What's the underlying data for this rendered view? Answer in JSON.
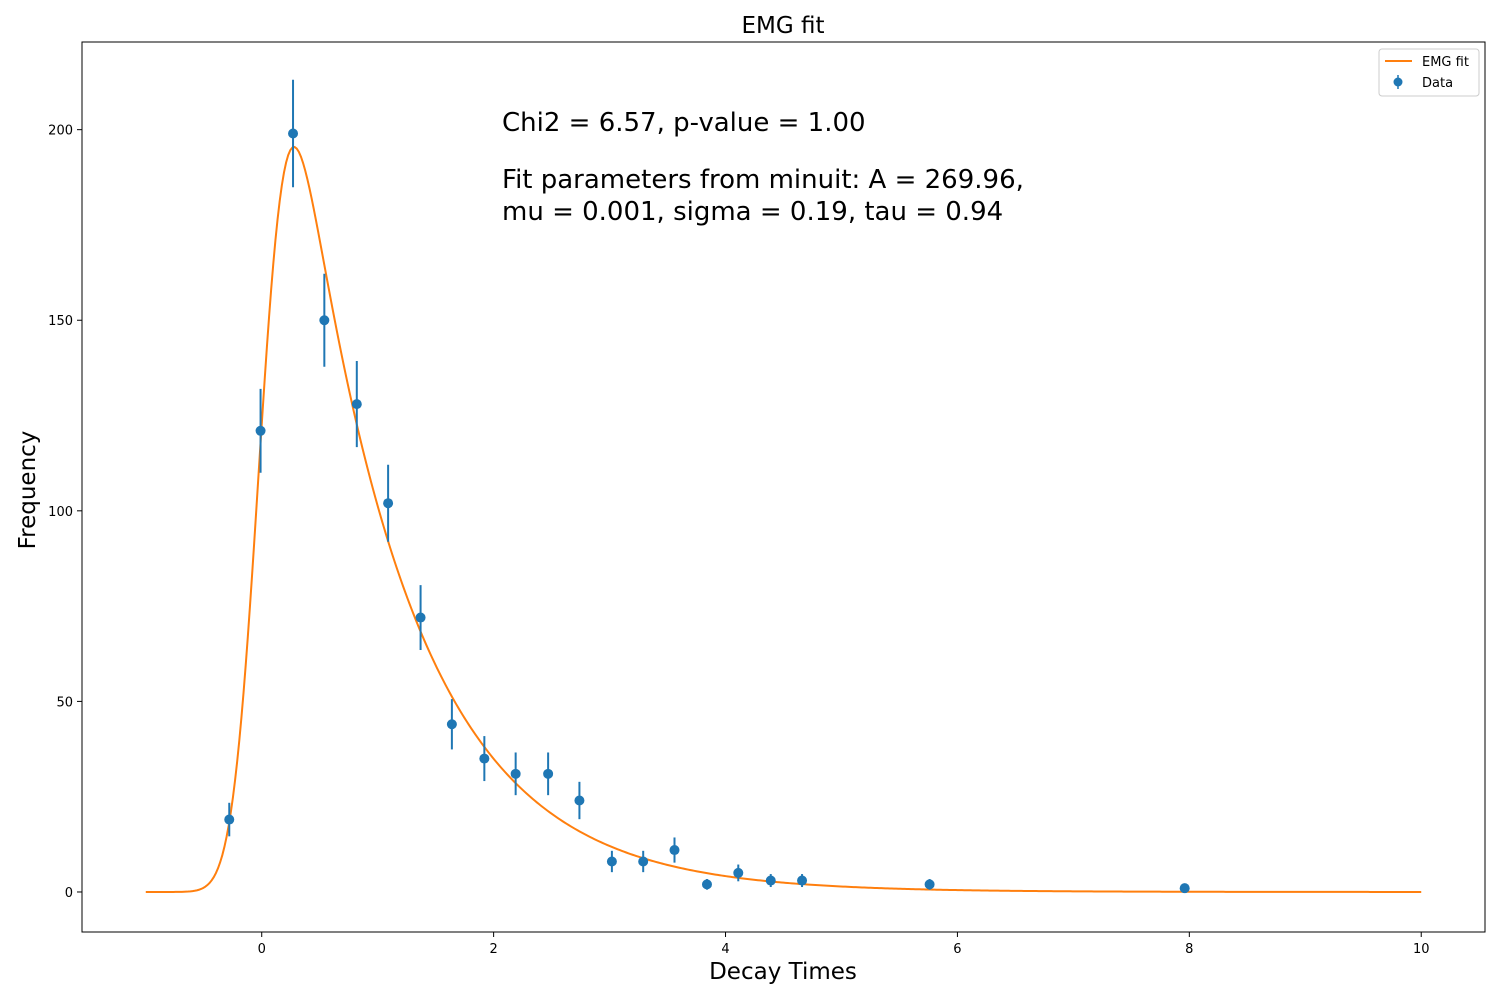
{
  "chart_data": {
    "type": "scatter",
    "title": "EMG fit",
    "xlabel": "Decay Times",
    "ylabel": "Frequency",
    "xlim": [
      -1.55,
      10.55
    ],
    "ylim": [
      -10.5,
      223
    ],
    "xticks": [
      0,
      2,
      4,
      6,
      8,
      10
    ],
    "yticks": [
      0,
      50,
      100,
      150,
      200
    ],
    "grid": false,
    "legend_position": "top-right",
    "annotations": [
      "Chi2 = 6.57, p-value = 1.00",
      "Fit parameters from minuit: A = 269.96,",
      "mu = 0.001, sigma = 0.19, tau = 0.94"
    ],
    "series": [
      {
        "name": "EMG fit",
        "kind": "line",
        "color": "#ff7f0e",
        "model": "exponentially modified gaussian",
        "params": {
          "A": 269.96,
          "mu": 0.001,
          "sigma": 0.19,
          "tau": 0.94
        },
        "x_range": [
          -1.0,
          10.0
        ]
      },
      {
        "name": "Data",
        "kind": "errorbar",
        "color": "#1f77b4",
        "points": [
          {
            "x": -0.28,
            "y": 19,
            "err": 4.4
          },
          {
            "x": -0.01,
            "y": 121,
            "err": 11.0
          },
          {
            "x": 0.27,
            "y": 199,
            "err": 14.1
          },
          {
            "x": 0.54,
            "y": 150,
            "err": 12.2
          },
          {
            "x": 0.82,
            "y": 128,
            "err": 11.3
          },
          {
            "x": 1.09,
            "y": 102,
            "err": 10.1
          },
          {
            "x": 1.37,
            "y": 72,
            "err": 8.5
          },
          {
            "x": 1.64,
            "y": 44,
            "err": 6.6
          },
          {
            "x": 1.92,
            "y": 35,
            "err": 5.9
          },
          {
            "x": 2.19,
            "y": 31,
            "err": 5.6
          },
          {
            "x": 2.47,
            "y": 31,
            "err": 5.6
          },
          {
            "x": 2.74,
            "y": 24,
            "err": 4.9
          },
          {
            "x": 3.02,
            "y": 8,
            "err": 2.8
          },
          {
            "x": 3.29,
            "y": 8,
            "err": 2.8
          },
          {
            "x": 3.56,
            "y": 11,
            "err": 3.3
          },
          {
            "x": 3.84,
            "y": 2,
            "err": 1.4
          },
          {
            "x": 4.11,
            "y": 5,
            "err": 2.2
          },
          {
            "x": 4.39,
            "y": 3,
            "err": 1.7
          },
          {
            "x": 4.66,
            "y": 3,
            "err": 1.7
          },
          {
            "x": 5.76,
            "y": 2,
            "err": 1.4
          },
          {
            "x": 7.96,
            "y": 1,
            "err": 1.0
          }
        ]
      }
    ]
  }
}
